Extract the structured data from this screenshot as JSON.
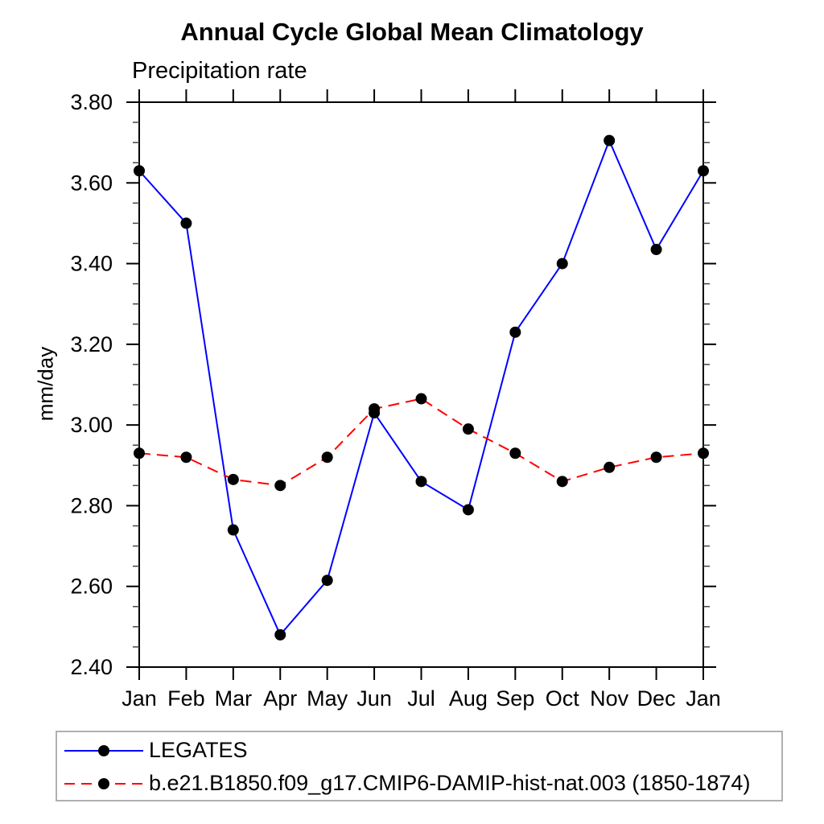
{
  "page": {
    "background_color": "#ffffff",
    "text_color": "#000000",
    "legend_border_color": "#b0b0b0"
  },
  "chart_data": {
    "type": "line",
    "title": "Annual Cycle Global Mean Climatology",
    "subtitle": "Precipitation rate",
    "ylabel": "mm/day",
    "xlabel": "",
    "categories": [
      "Jan",
      "Feb",
      "Mar",
      "Apr",
      "May",
      "Jun",
      "Jul",
      "Aug",
      "Sep",
      "Oct",
      "Nov",
      "Dec",
      "Jan"
    ],
    "ylim": [
      2.4,
      3.8
    ],
    "ytick_step": 0.2,
    "yminor_step": 0.05,
    "ytick_labels": [
      "2.40",
      "2.60",
      "2.80",
      "3.00",
      "3.20",
      "3.40",
      "3.60",
      "3.80"
    ],
    "grid": false,
    "legend_position": "bottom-left-box",
    "series": [
      {
        "name": "LEGATES",
        "color": "#0000ff",
        "line_style": "solid",
        "marker": "circle",
        "marker_color": "#000000",
        "values": [
          3.63,
          3.5,
          2.74,
          2.48,
          2.615,
          3.03,
          2.86,
          2.79,
          3.23,
          3.4,
          3.705,
          3.435,
          3.63
        ]
      },
      {
        "name": "b.e21.B1850.f09_g17.CMIP6-DAMIP-hist-nat.003 (1850-1874)",
        "color": "#ff0000",
        "line_style": "dashed",
        "marker": "circle",
        "marker_color": "#000000",
        "values": [
          2.93,
          2.92,
          2.865,
          2.85,
          2.92,
          3.04,
          3.065,
          2.99,
          2.93,
          2.86,
          2.895,
          2.92,
          2.93
        ]
      }
    ]
  }
}
